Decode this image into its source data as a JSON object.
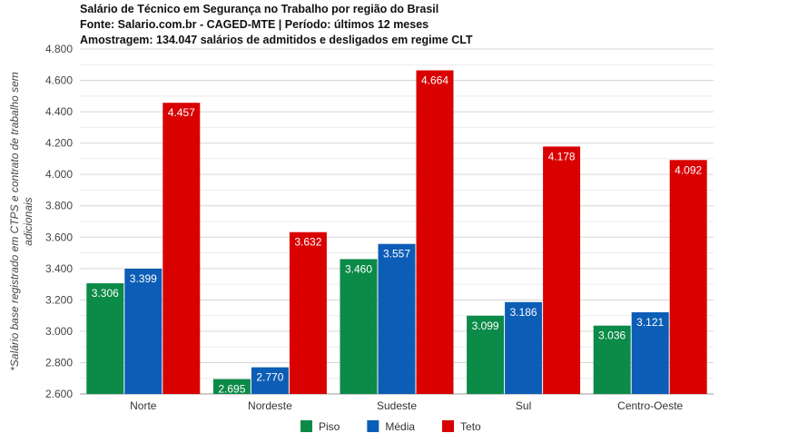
{
  "chart_data": {
    "type": "bar",
    "title_lines": [
      "Salário de Técnico em Segurança no Trabalho por região do Brasil",
      "Fonte: Salario.com.br - CAGED-MTE | Período: últimos 12 meses",
      "Amostragem: 134.047 salários de admitidos e desligados em regime CLT"
    ],
    "ylabel_lines": [
      "*Salário base registrado em CTPS e contrato de trabalho sem",
      "adicionais"
    ],
    "xlabel": "",
    "ylim": [
      2600,
      4800
    ],
    "yticks": [
      2600,
      2800,
      3000,
      3200,
      3400,
      3600,
      3800,
      4000,
      4200,
      4400,
      4600,
      4800
    ],
    "ytick_labels": [
      "2.600",
      "2.800",
      "3.000",
      "3.200",
      "3.400",
      "3.600",
      "3.800",
      "4.000",
      "4.200",
      "4.400",
      "4.600",
      "4.800"
    ],
    "grid": true,
    "legend_position": "bottom",
    "categories": [
      "Norte",
      "Nordeste",
      "Sudeste",
      "Sul",
      "Centro-Oeste"
    ],
    "series": [
      {
        "name": "Piso",
        "color": "#0b8a48",
        "values": [
          3306,
          2695,
          3460,
          3099,
          3036
        ],
        "labels": [
          "3.306",
          "2.695",
          "3.460",
          "3.099",
          "3.036"
        ]
      },
      {
        "name": "Média",
        "color": "#0c5db6",
        "values": [
          3399,
          2770,
          3557,
          3186,
          3121
        ],
        "labels": [
          "3.399",
          "2.770",
          "3.557",
          "3.186",
          "3.121"
        ]
      },
      {
        "name": "Teto",
        "color": "#d90000",
        "values": [
          4457,
          3632,
          4664,
          4178,
          4092
        ],
        "labels": [
          "4.457",
          "3.632",
          "4.664",
          "4.178",
          "4.092"
        ]
      }
    ]
  }
}
